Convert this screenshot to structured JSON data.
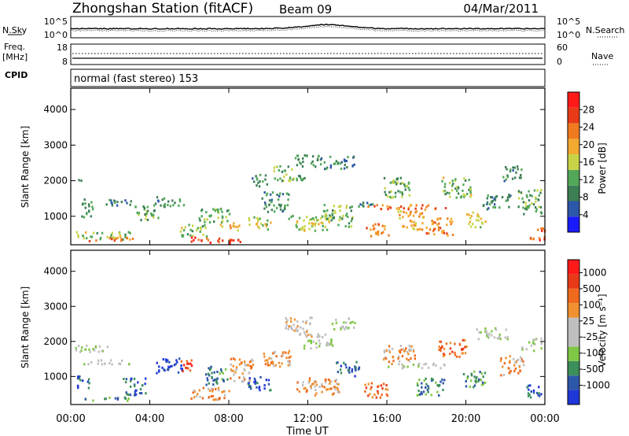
{
  "header": {
    "station": "Zhongshan Station (fitACF)",
    "beam": "Beam 09",
    "date": "04/Mar/2011"
  },
  "noise_panel": {
    "left_label": "N.Sky",
    "left_ticks": [
      "10^5",
      "10^0"
    ],
    "right_label": "N.Search",
    "right_ticks": [
      "10^5",
      "10^0"
    ]
  },
  "freq_panel": {
    "left_label_1": "Freq.",
    "left_label_2": "[MHz]",
    "left_ticks": [
      "18",
      "8"
    ],
    "right_label": "Nave",
    "right_ticks": [
      "60",
      "0"
    ]
  },
  "cpid": {
    "label": "CPID",
    "value": "normal (fast stereo) 153"
  },
  "x_axis": {
    "title": "Time UT",
    "ticks": [
      "00:00",
      "04:00",
      "08:00",
      "12:00",
      "16:00",
      "20:00",
      "00:00"
    ]
  },
  "colors": {
    "power": [
      "#1a1aff",
      "#2d57a8",
      "#3c7f55",
      "#52a858",
      "#c8d445",
      "#f2a930",
      "#f07a1e",
      "#e83a17",
      "#ff1a1a"
    ],
    "velocity": [
      "#2037d8",
      "#2d57a8",
      "#3c8f5a",
      "#7fc845",
      "#bfbfbf",
      "#bfbfbf",
      "#f09030",
      "#f06a1e",
      "#e83a17",
      "#ff1a1a"
    ]
  },
  "chart_data": [
    {
      "type": "heatmap",
      "quantity": "Power",
      "ylabel": "Slant Range [km]",
      "xlabel": "Time UT",
      "xlim_hours": [
        0,
        24
      ],
      "ylim": [
        200,
        4600
      ],
      "yticks": [
        1000,
        2000,
        3000,
        4000
      ],
      "colorbar": {
        "label": "Power [dB]",
        "ticks": [
          4,
          8,
          12,
          16,
          20,
          24,
          28
        ],
        "range": [
          0,
          32
        ]
      },
      "blobs": [
        {
          "t": 0.4,
          "r": 2000,
          "dt": 0.2,
          "dr": 120,
          "level": 8
        },
        {
          "t": 0.8,
          "r": 1200,
          "dt": 0.6,
          "dr": 400,
          "level": 10
        },
        {
          "t": 1.5,
          "r": 450,
          "dt": 3.0,
          "dr": 150,
          "level": 14
        },
        {
          "t": 2.0,
          "r": 350,
          "dt": 2.2,
          "dr": 80,
          "level": 24
        },
        {
          "t": 2.5,
          "r": 1400,
          "dt": 1.5,
          "dr": 150,
          "level": 8
        },
        {
          "t": 3.8,
          "r": 1100,
          "dt": 1.2,
          "dr": 300,
          "level": 12
        },
        {
          "t": 5.0,
          "r": 1400,
          "dt": 1.5,
          "dr": 200,
          "level": 10
        },
        {
          "t": 6.2,
          "r": 600,
          "dt": 1.4,
          "dr": 250,
          "level": 14
        },
        {
          "t": 6.8,
          "r": 320,
          "dt": 1.6,
          "dr": 120,
          "level": 26
        },
        {
          "t": 8.0,
          "r": 300,
          "dt": 1.2,
          "dr": 100,
          "level": 28
        },
        {
          "t": 7.2,
          "r": 1000,
          "dt": 1.6,
          "dr": 300,
          "level": 12
        },
        {
          "t": 8.0,
          "r": 700,
          "dt": 1.0,
          "dr": 150,
          "level": 18
        },
        {
          "t": 9.5,
          "r": 800,
          "dt": 1.2,
          "dr": 250,
          "level": 16
        },
        {
          "t": 9.5,
          "r": 2000,
          "dt": 0.8,
          "dr": 250,
          "level": 9
        },
        {
          "t": 10.3,
          "r": 1400,
          "dt": 1.4,
          "dr": 400,
          "level": 10
        },
        {
          "t": 11.0,
          "r": 2200,
          "dt": 1.6,
          "dr": 300,
          "level": 12
        },
        {
          "t": 12.0,
          "r": 2550,
          "dt": 1.4,
          "dr": 250,
          "level": 10
        },
        {
          "t": 13.6,
          "r": 2500,
          "dt": 1.6,
          "dr": 250,
          "level": 8
        },
        {
          "t": 12.0,
          "r": 800,
          "dt": 2.2,
          "dr": 300,
          "level": 16
        },
        {
          "t": 13.5,
          "r": 1000,
          "dt": 1.5,
          "dr": 450,
          "level": 13
        },
        {
          "t": 15.0,
          "r": 1300,
          "dt": 1.0,
          "dr": 120,
          "level": 10
        },
        {
          "t": 15.5,
          "r": 600,
          "dt": 1.2,
          "dr": 250,
          "level": 22
        },
        {
          "t": 16.5,
          "r": 1800,
          "dt": 1.4,
          "dr": 400,
          "level": 12
        },
        {
          "t": 17.2,
          "r": 900,
          "dt": 1.4,
          "dr": 400,
          "level": 20
        },
        {
          "t": 17.0,
          "r": 1250,
          "dt": 4.0,
          "dr": 100,
          "level": 24
        },
        {
          "t": 18.6,
          "r": 700,
          "dt": 1.4,
          "dr": 350,
          "level": 22
        },
        {
          "t": 19.5,
          "r": 1800,
          "dt": 1.5,
          "dr": 400,
          "level": 14
        },
        {
          "t": 20.5,
          "r": 900,
          "dt": 1.0,
          "dr": 300,
          "level": 16
        },
        {
          "t": 21.5,
          "r": 1400,
          "dt": 1.5,
          "dr": 300,
          "level": 10
        },
        {
          "t": 22.3,
          "r": 2200,
          "dt": 1.0,
          "dr": 300,
          "level": 9
        },
        {
          "t": 23.2,
          "r": 1400,
          "dt": 1.2,
          "dr": 500,
          "level": 12
        },
        {
          "t": 23.6,
          "r": 500,
          "dt": 0.8,
          "dr": 250,
          "level": 26
        }
      ]
    },
    {
      "type": "heatmap",
      "quantity": "Velocity",
      "ylabel": "Slant Range [km]",
      "xlabel": "Time UT",
      "xlim_hours": [
        0,
        24
      ],
      "ylim": [
        200,
        4600
      ],
      "yticks": [
        1000,
        2000,
        3000,
        4000
      ],
      "colorbar": {
        "label": "Velocity [m s⁻¹]",
        "ticks": [
          1000,
          500,
          100,
          25,
          -25,
          -100,
          -500,
          -1000
        ]
      },
      "blobs": [
        {
          "t": 0.6,
          "r": 800,
          "dt": 0.6,
          "dr": 300,
          "level": 1
        },
        {
          "t": 1.2,
          "r": 1800,
          "dt": 2.0,
          "dr": 150,
          "level": 4
        },
        {
          "t": 1.8,
          "r": 1400,
          "dt": 2.4,
          "dr": 100,
          "level": 4
        },
        {
          "t": 1.8,
          "r": 350,
          "dt": 2.5,
          "dr": 70,
          "level": 2
        },
        {
          "t": 3.2,
          "r": 700,
          "dt": 1.2,
          "dr": 350,
          "level": 1
        },
        {
          "t": 5.0,
          "r": 1300,
          "dt": 1.4,
          "dr": 300,
          "level": 0
        },
        {
          "t": 5.8,
          "r": 1300,
          "dt": 0.6,
          "dr": 300,
          "level": 8
        },
        {
          "t": 7.0,
          "r": 500,
          "dt": 2.0,
          "dr": 250,
          "level": 6
        },
        {
          "t": 7.4,
          "r": 1000,
          "dt": 1.2,
          "dr": 400,
          "level": 2
        },
        {
          "t": 8.6,
          "r": 1200,
          "dt": 1.2,
          "dr": 500,
          "level": 6
        },
        {
          "t": 9.5,
          "r": 800,
          "dt": 1.2,
          "dr": 300,
          "level": 1
        },
        {
          "t": 10.5,
          "r": 1500,
          "dt": 1.6,
          "dr": 350,
          "level": 6
        },
        {
          "t": 11.5,
          "r": 2400,
          "dt": 1.4,
          "dr": 400,
          "level": 5
        },
        {
          "t": 12.5,
          "r": 2000,
          "dt": 1.5,
          "dr": 300,
          "level": 4
        },
        {
          "t": 13.8,
          "r": 2500,
          "dt": 1.2,
          "dr": 250,
          "level": 4
        },
        {
          "t": 12.5,
          "r": 700,
          "dt": 2.2,
          "dr": 350,
          "level": 6
        },
        {
          "t": 14.0,
          "r": 1200,
          "dt": 1.2,
          "dr": 300,
          "level": 1
        },
        {
          "t": 15.4,
          "r": 600,
          "dt": 1.2,
          "dr": 300,
          "level": 7
        },
        {
          "t": 16.6,
          "r": 1600,
          "dt": 1.6,
          "dr": 400,
          "level": 6
        },
        {
          "t": 17.4,
          "r": 1300,
          "dt": 3.0,
          "dr": 100,
          "level": 4
        },
        {
          "t": 18.2,
          "r": 700,
          "dt": 1.5,
          "dr": 350,
          "level": 2
        },
        {
          "t": 19.3,
          "r": 1800,
          "dt": 1.4,
          "dr": 350,
          "level": 7
        },
        {
          "t": 20.4,
          "r": 900,
          "dt": 1.2,
          "dr": 350,
          "level": 2
        },
        {
          "t": 21.3,
          "r": 2200,
          "dt": 1.6,
          "dr": 250,
          "level": 4
        },
        {
          "t": 22.3,
          "r": 1300,
          "dt": 1.2,
          "dr": 400,
          "level": 6
        },
        {
          "t": 23.3,
          "r": 1900,
          "dt": 1.0,
          "dr": 250,
          "level": 4
        },
        {
          "t": 23.4,
          "r": 600,
          "dt": 0.8,
          "dr": 300,
          "level": 1
        }
      ]
    }
  ]
}
